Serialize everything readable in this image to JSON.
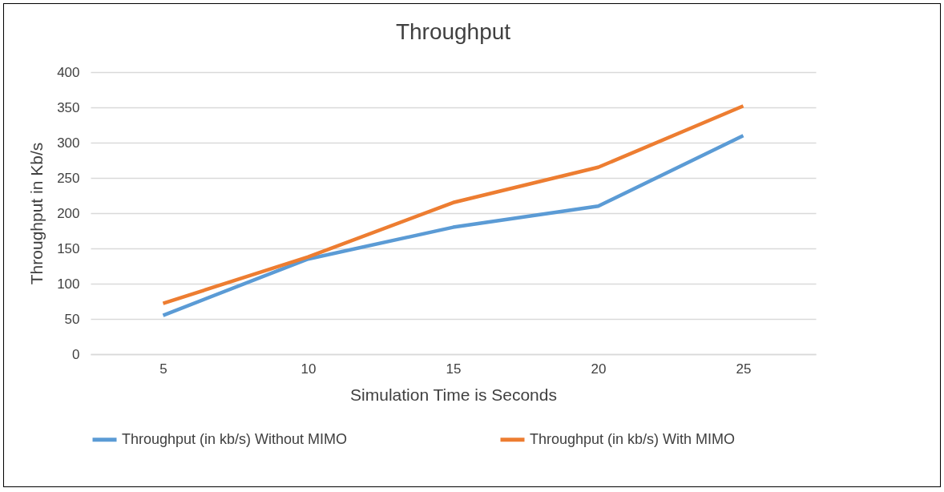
{
  "chart_data": {
    "type": "line",
    "title": "Throughput",
    "xlabel": "Simulation Time is Seconds",
    "ylabel": "Throughput in Kb/s",
    "categories": [
      "5",
      "10",
      "15",
      "20",
      "25"
    ],
    "series": [
      {
        "name": "Throughput (in kb/s) Without MIMO",
        "color": "#5b9bd5",
        "values": [
          55,
          135,
          180,
          210,
          310
        ]
      },
      {
        "name": "Throughput (in kb/s) With MIMO",
        "color": "#ed7d31",
        "values": [
          72,
          138,
          215,
          265,
          352
        ]
      }
    ],
    "ylim": [
      0,
      400
    ],
    "yticks": [
      0,
      50,
      100,
      150,
      200,
      250,
      300,
      350,
      400
    ],
    "grid": "y",
    "legend": "bottom",
    "marker": "none",
    "line_style": "solid"
  }
}
